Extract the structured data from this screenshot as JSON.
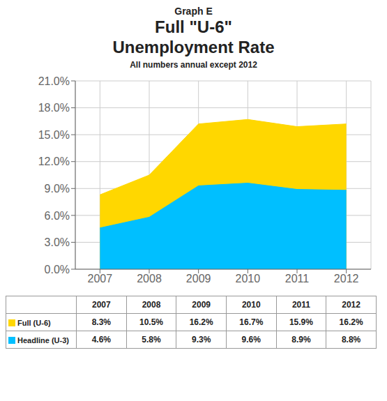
{
  "chart_data": {
    "type": "area",
    "title": [
      "Graph E",
      "Full \"U-6\"",
      "Unemployment Rate"
    ],
    "subtitle": "All numbers annual except 2012",
    "x": [
      2007,
      2008,
      2009,
      2010,
      2011,
      2012
    ],
    "series": [
      {
        "name": "Full (U-6)",
        "color": "#FFD700",
        "values": [
          8.3,
          10.5,
          16.2,
          16.7,
          15.9,
          16.2
        ],
        "value_labels": [
          "8.3%",
          "10.5%",
          "16.2%",
          "16.7%",
          "15.9%",
          "16.2%"
        ]
      },
      {
        "name": "Headline (U-3)",
        "color": "#00BFFF",
        "values": [
          4.6,
          5.8,
          9.3,
          9.6,
          8.9,
          8.8
        ],
        "value_labels": [
          "4.6%",
          "5.8%",
          "9.3%",
          "9.6%",
          "8.9%",
          "8.8%"
        ]
      }
    ],
    "xlim": [
      2006.5,
      2012.5
    ],
    "xticks": [
      2007,
      2008,
      2009,
      2010,
      2011,
      2012
    ],
    "ylim": [
      0,
      21
    ],
    "yticks": [
      {
        "value": 0,
        "label": "0.0%"
      },
      {
        "value": 3,
        "label": "3.0%"
      },
      {
        "value": 6,
        "label": "6.0%"
      },
      {
        "value": 9,
        "label": "9.0%"
      },
      {
        "value": 12,
        "label": "12.0%"
      },
      {
        "value": 15,
        "label": "15.0%"
      },
      {
        "value": 18,
        "label": "18.0%"
      },
      {
        "value": 21,
        "label": "21.0%"
      }
    ],
    "grid": true
  }
}
